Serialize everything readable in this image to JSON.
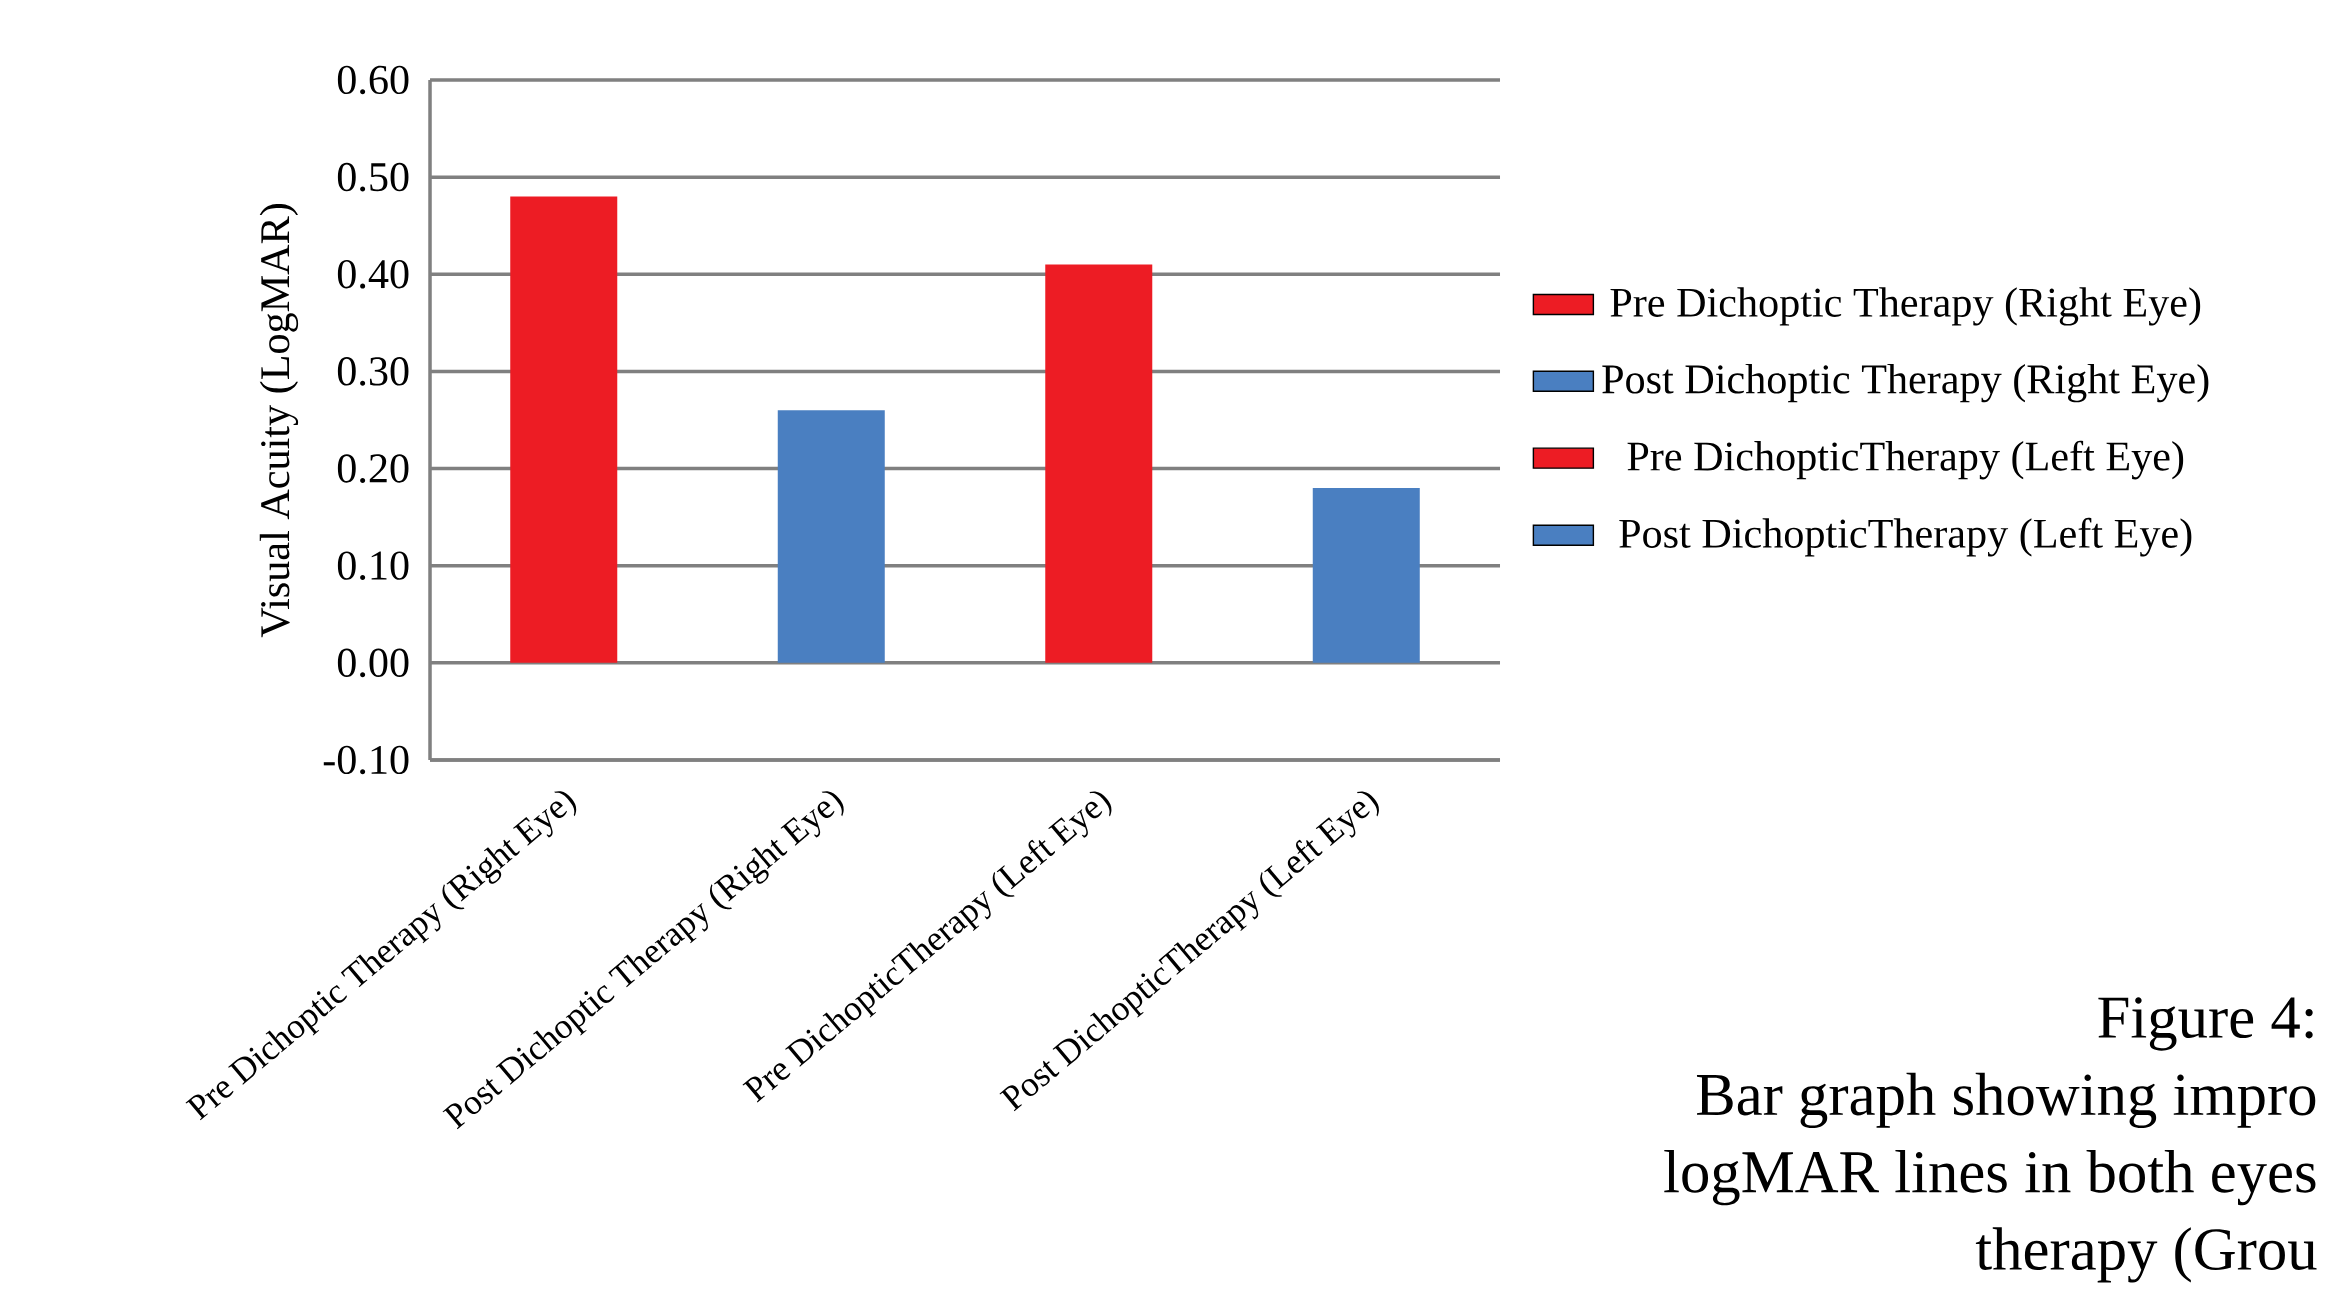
{
  "chart_data": {
    "type": "bar",
    "ylabel": "Visual Acuity (LogMAR)",
    "categories": [
      "Pre Dichoptic Therapy (Right Eye)",
      "Post Dichoptic Therapy (Right Eye)",
      "Pre DichopticTherapy (Left Eye)",
      "Post DichopticTherapy (Left Eye)"
    ],
    "series": [
      {
        "name": "Pre Dichoptic Therapy (Right Eye)",
        "color": "#ed1c24",
        "values": [
          0.48,
          null,
          null,
          null
        ]
      },
      {
        "name": "Post Dichoptic Therapy (Right Eye)",
        "color": "#4a7fc1",
        "values": [
          null,
          0.26,
          null,
          null
        ]
      },
      {
        "name": "Pre DichopticTherapy (Left Eye)",
        "color": "#ed1c24",
        "values": [
          null,
          null,
          0.41,
          null
        ]
      },
      {
        "name": "Post DichopticTherapy (Left Eye)",
        "color": "#4a7fc1",
        "values": [
          null,
          null,
          null,
          0.18
        ]
      }
    ],
    "ylim": [
      -0.1,
      0.6
    ],
    "yticks": [
      {
        "value": -0.1,
        "label": "-0.10"
      },
      {
        "value": 0,
        "label": "0.00"
      },
      {
        "value": 0.1,
        "label": "0.10"
      },
      {
        "value": 0.2,
        "label": "0.20"
      },
      {
        "value": 0.3,
        "label": "0.30"
      },
      {
        "value": 0.4,
        "label": "0.40"
      },
      {
        "value": 0.5,
        "label": "0.50"
      },
      {
        "value": 0.6,
        "label": "0.60"
      }
    ],
    "grid": "y",
    "legend": "right",
    "annotations": [
      "Figure  4:",
      "Bar graph showing impro",
      "logMAR lines in both eyes",
      "therapy  (Grou"
    ]
  }
}
